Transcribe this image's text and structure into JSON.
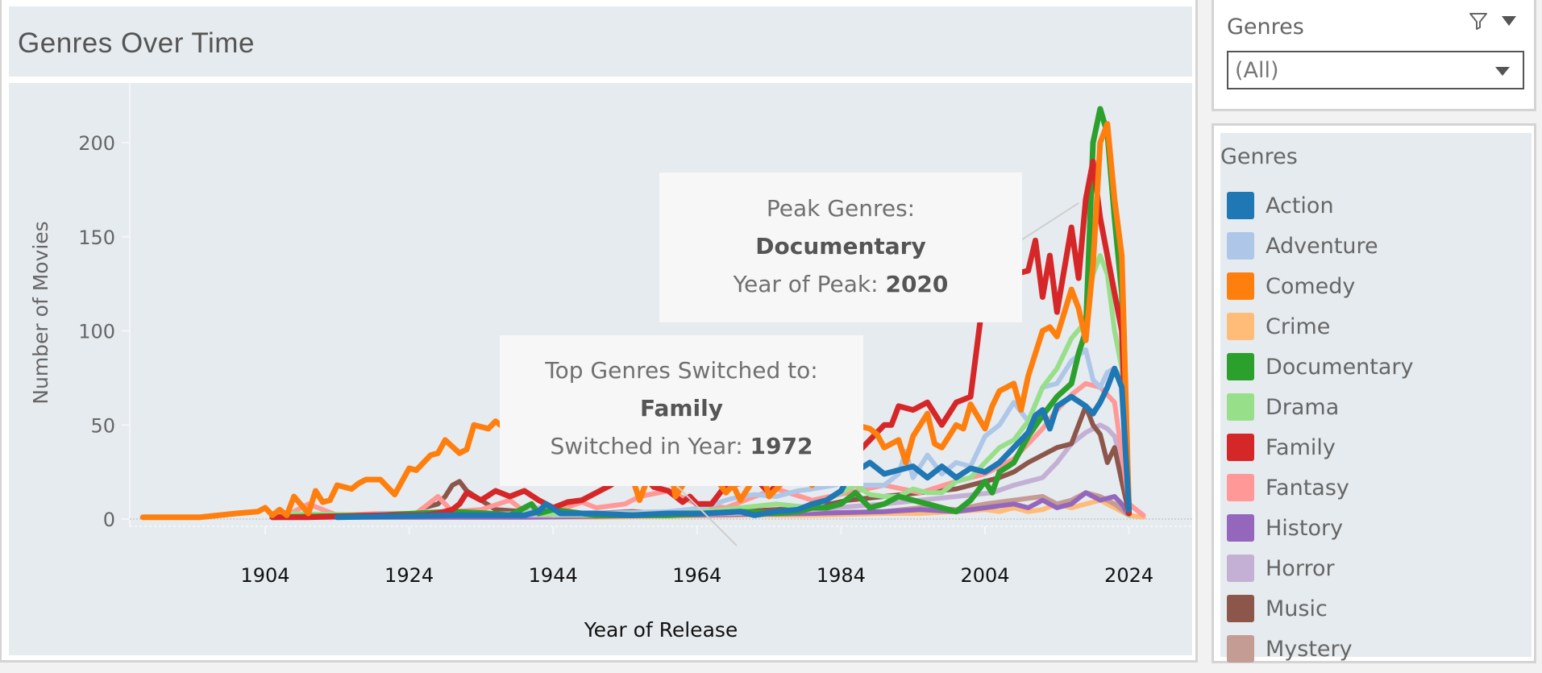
{
  "title": "Genres Over Time",
  "filter": {
    "title": "Genres",
    "selected": "(All)",
    "icons": [
      "filter-icon",
      "menu-caret-icon",
      "dropdown-caret-icon"
    ]
  },
  "legend": {
    "title": "Genres",
    "items": [
      {
        "label": "Action",
        "color": "#1f77b4"
      },
      {
        "label": "Adventure",
        "color": "#aec7e8"
      },
      {
        "label": "Comedy",
        "color": "#ff7f0e"
      },
      {
        "label": "Crime",
        "color": "#ffbb78"
      },
      {
        "label": "Documentary",
        "color": "#2ca02c"
      },
      {
        "label": "Drama",
        "color": "#98df8a"
      },
      {
        "label": "Family",
        "color": "#d62728"
      },
      {
        "label": "Fantasy",
        "color": "#ff9896"
      },
      {
        "label": "History",
        "color": "#9467bd"
      },
      {
        "label": "Horror",
        "color": "#c5b0d5"
      },
      {
        "label": "Music",
        "color": "#8c564b"
      },
      {
        "label": "Mystery",
        "color": "#c49c94"
      }
    ]
  },
  "annotations": {
    "peak": {
      "line1": "Peak Genres:",
      "genre": "Documentary",
      "line3_label": "Year of Peak: ",
      "year": "2020"
    },
    "switch": {
      "line1": "Top Genres Switched to:",
      "genre": "Family",
      "line3_label": "Switched in Year: ",
      "year": "1972"
    }
  },
  "chart_data": {
    "type": "line",
    "title": "Genres Over Time",
    "xlabel": "Year of Release",
    "ylabel": "Number of Movies",
    "xlim": [
      1884,
      2036
    ],
    "ylim": [
      -12,
      225
    ],
    "xticks": [
      1904,
      1924,
      1944,
      1964,
      1984,
      2004,
      2024
    ],
    "yticks": [
      0,
      50,
      100,
      150,
      200
    ],
    "grid": false,
    "legend_position": "right",
    "series": [
      {
        "name": "Comedy",
        "color": "#ff7f0e",
        "x": [
          1887,
          1895,
          1900,
          1903,
          1904,
          1905,
          1906,
          1907,
          1908,
          1910,
          1911,
          1912,
          1913,
          1914,
          1916,
          1917,
          1918,
          1920,
          1922,
          1924,
          1925,
          1927,
          1928,
          1929,
          1931,
          1932,
          1933,
          1935,
          1936,
          1937,
          1938,
          1940,
          1941,
          1942,
          1944,
          1945,
          1946,
          1947,
          1948,
          1950,
          1952,
          1953,
          1955,
          1956,
          1958,
          1960,
          1961,
          1962,
          1964,
          1965,
          1966,
          1968,
          1969,
          1970,
          1972,
          1973,
          1974,
          1976,
          1977,
          1978,
          1980,
          1981,
          1982,
          1984,
          1985,
          1986,
          1988,
          1989,
          1990,
          1992,
          1993,
          1994,
          1996,
          1997,
          1998,
          2000,
          2001,
          2002,
          2004,
          2005,
          2006,
          2008,
          2009,
          2010,
          2012,
          2013,
          2014,
          2016,
          2017,
          2018,
          2019,
          2020,
          2021,
          2022,
          2023,
          2024
        ],
        "y": [
          1,
          1,
          3,
          4,
          6,
          2,
          5,
          2,
          12,
          3,
          15,
          9,
          10,
          18,
          16,
          19,
          21,
          21,
          13,
          27,
          26,
          34,
          35,
          42,
          35,
          37,
          50,
          48,
          52,
          49,
          53,
          45,
          50,
          35,
          48,
          55,
          42,
          48,
          38,
          52,
          32,
          30,
          22,
          10,
          30,
          35,
          12,
          18,
          32,
          20,
          25,
          14,
          18,
          10,
          22,
          26,
          12,
          20,
          28,
          24,
          18,
          33,
          36,
          28,
          40,
          50,
          48,
          45,
          38,
          42,
          30,
          44,
          56,
          40,
          38,
          50,
          48,
          61,
          48,
          60,
          68,
          72,
          58,
          76,
          100,
          102,
          97,
          122,
          112,
          95,
          135,
          200,
          210,
          170,
          140,
          5
        ]
      },
      {
        "name": "Family",
        "color": "#d62728",
        "x": [
          1905,
          1910,
          1920,
          1926,
          1928,
          1930,
          1931,
          1932,
          1934,
          1936,
          1938,
          1940,
          1942,
          1944,
          1946,
          1948,
          1950,
          1952,
          1954,
          1956,
          1957,
          1958,
          1960,
          1962,
          1963,
          1964,
          1966,
          1968,
          1970,
          1972,
          1974,
          1976,
          1978,
          1980,
          1982,
          1984,
          1986,
          1988,
          1990,
          1991,
          1992,
          1994,
          1996,
          1998,
          2000,
          2002,
          2004,
          2006,
          2007,
          2008,
          2010,
          2011,
          2012,
          2013,
          2014,
          2016,
          2017,
          2018,
          2019,
          2020,
          2021,
          2022,
          2023,
          2024
        ],
        "y": [
          1,
          1,
          2,
          2,
          3,
          5,
          8,
          14,
          10,
          15,
          12,
          15,
          10,
          6,
          9,
          10,
          14,
          18,
          24,
          22,
          21,
          17,
          15,
          9,
          12,
          8,
          8,
          18,
          19,
          22,
          14,
          22,
          20,
          28,
          20,
          36,
          34,
          42,
          50,
          50,
          60,
          58,
          62,
          50,
          62,
          65,
          125,
          128,
          132,
          130,
          132,
          148,
          118,
          140,
          110,
          155,
          128,
          170,
          190,
          160,
          140,
          120,
          100,
          3
        ]
      },
      {
        "name": "Documentary",
        "color": "#2ca02c",
        "x": [
          1905,
          1920,
          1925,
          1930,
          1935,
          1938,
          1940,
          1941,
          1942,
          1944,
          1946,
          1948,
          1950,
          1955,
          1960,
          1965,
          1970,
          1975,
          1978,
          1980,
          1982,
          1984,
          1986,
          1988,
          1990,
          1992,
          1994,
          1996,
          1998,
          2000,
          2002,
          2004,
          2005,
          2006,
          2008,
          2010,
          2012,
          2014,
          2016,
          2017,
          2018,
          2019,
          2020,
          2021,
          2022,
          2023,
          2024
        ],
        "y": [
          1,
          2,
          3,
          4,
          3,
          2,
          6,
          8,
          3,
          5,
          4,
          3,
          2,
          2,
          2,
          3,
          4,
          3,
          4,
          6,
          6,
          8,
          14,
          6,
          8,
          12,
          10,
          8,
          6,
          4,
          10,
          20,
          14,
          25,
          30,
          44,
          55,
          65,
          72,
          88,
          100,
          200,
          218,
          205,
          160,
          120,
          3
        ]
      },
      {
        "name": "Drama",
        "color": "#98df8a",
        "x": [
          1906,
          1920,
          1930,
          1940,
          1950,
          1960,
          1965,
          1970,
          1975,
          1980,
          1982,
          1984,
          1986,
          1988,
          1990,
          1992,
          1994,
          1996,
          1998,
          2000,
          2002,
          2004,
          2006,
          2008,
          2010,
          2012,
          2014,
          2016,
          2018,
          2019,
          2020,
          2021,
          2022,
          2023,
          2024
        ],
        "y": [
          3,
          2,
          2,
          3,
          2,
          3,
          4,
          6,
          8,
          6,
          10,
          14,
          18,
          13,
          12,
          12,
          16,
          14,
          14,
          20,
          22,
          30,
          38,
          42,
          52,
          70,
          80,
          96,
          105,
          130,
          140,
          130,
          100,
          80,
          2
        ]
      },
      {
        "name": "Action",
        "color": "#1f77b4",
        "x": [
          1914,
          1930,
          1940,
          1942,
          1943,
          1945,
          1950,
          1955,
          1960,
          1965,
          1970,
          1972,
          1975,
          1978,
          1980,
          1982,
          1984,
          1985,
          1986,
          1988,
          1990,
          1992,
          1994,
          1996,
          1998,
          2000,
          2002,
          2004,
          2006,
          2008,
          2010,
          2011,
          2012,
          2013,
          2014,
          2016,
          2018,
          2019,
          2020,
          2021,
          2022,
          2023,
          2024
        ],
        "y": [
          1,
          2,
          2,
          4,
          8,
          3,
          3,
          2,
          3,
          3,
          4,
          2,
          4,
          5,
          8,
          10,
          15,
          22,
          25,
          30,
          24,
          26,
          28,
          22,
          28,
          22,
          27,
          25,
          30,
          38,
          46,
          55,
          58,
          48,
          60,
          65,
          60,
          56,
          62,
          70,
          80,
          70,
          5
        ]
      },
      {
        "name": "Adventure",
        "color": "#aec7e8",
        "x": [
          1911,
          1918,
          1920,
          1930,
          1940,
          1942,
          1944,
          1950,
          1960,
          1965,
          1968,
          1970,
          1972,
          1975,
          1978,
          1980,
          1983,
          1985,
          1987,
          1990,
          1992,
          1993,
          1994,
          1996,
          1998,
          2000,
          2002,
          2004,
          2006,
          2008,
          2010,
          2012,
          2014,
          2016,
          2018,
          2019,
          2020,
          2021,
          2022,
          2023,
          2024
        ],
        "y": [
          1,
          1,
          3,
          2,
          3,
          6,
          2,
          3,
          4,
          6,
          10,
          12,
          13,
          12,
          15,
          16,
          18,
          20,
          18,
          18,
          24,
          36,
          22,
          34,
          24,
          30,
          28,
          44,
          50,
          62,
          52,
          70,
          72,
          84,
          90,
          74,
          70,
          78,
          80,
          74,
          3
        ]
      },
      {
        "name": "Fantasy",
        "color": "#ff9896",
        "x": [
          1907,
          1910,
          1914,
          1920,
          1925,
          1928,
          1930,
          1934,
          1938,
          1940,
          1945,
          1948,
          1950,
          1954,
          1956,
          1960,
          1964,
          1968,
          1972,
          1975,
          1980,
          1985,
          1990,
          1995,
          2000,
          2004,
          2008,
          2012,
          2014,
          2016,
          2018,
          2020,
          2022,
          2024,
          2026
        ],
        "y": [
          2,
          8,
          2,
          3,
          3,
          12,
          4,
          5,
          10,
          4,
          5,
          9,
          6,
          8,
          12,
          15,
          8,
          6,
          12,
          16,
          10,
          14,
          18,
          14,
          20,
          24,
          32,
          48,
          58,
          66,
          72,
          70,
          62,
          8,
          2
        ]
      },
      {
        "name": "Music",
        "color": "#8c564b",
        "x": [
          1908,
          1920,
          1925,
          1926,
          1928,
          1929,
          1930,
          1931,
          1932,
          1934,
          1936,
          1940,
          1945,
          1950,
          1955,
          1960,
          1965,
          1970,
          1975,
          1980,
          1985,
          1990,
          1995,
          2000,
          2004,
          2006,
          2008,
          2010,
          2012,
          2014,
          2016,
          2018,
          2019,
          2020,
          2021,
          2022,
          2023,
          2024
        ],
        "y": [
          1,
          2,
          3,
          6,
          8,
          12,
          18,
          20,
          15,
          10,
          5,
          4,
          3,
          3,
          4,
          3,
          6,
          4,
          5,
          6,
          10,
          12,
          14,
          16,
          20,
          22,
          25,
          30,
          34,
          38,
          40,
          60,
          50,
          45,
          30,
          38,
          20,
          3
        ]
      },
      {
        "name": "Horror",
        "color": "#c5b0d5",
        "x": [
          1910,
          1930,
          1950,
          1970,
          1980,
          1990,
          1995,
          2000,
          2005,
          2008,
          2010,
          2012,
          2014,
          2016,
          2018,
          2020,
          2021,
          2022,
          2023,
          2024
        ],
        "y": [
          1,
          2,
          2,
          3,
          5,
          8,
          10,
          12,
          14,
          18,
          20,
          22,
          30,
          40,
          46,
          50,
          48,
          44,
          30,
          2
        ]
      },
      {
        "name": "History",
        "color": "#9467bd",
        "x": [
          1910,
          1940,
          1960,
          1980,
          1990,
          1995,
          2000,
          2004,
          2008,
          2010,
          2012,
          2014,
          2016,
          2018,
          2020,
          2022,
          2023,
          2024
        ],
        "y": [
          1,
          1,
          2,
          3,
          4,
          5,
          4,
          6,
          8,
          6,
          10,
          6,
          8,
          14,
          10,
          12,
          8,
          2
        ]
      },
      {
        "name": "Mystery",
        "color": "#c49c94",
        "x": [
          1910,
          1940,
          1960,
          1980,
          1990,
          1995,
          2000,
          2004,
          2008,
          2012,
          2014,
          2016,
          2018,
          2020,
          2022,
          2024
        ],
        "y": [
          1,
          2,
          2,
          3,
          4,
          6,
          5,
          8,
          10,
          12,
          8,
          10,
          14,
          12,
          8,
          2
        ]
      },
      {
        "name": "Crime",
        "color": "#ffbb78",
        "x": [
          1905,
          1930,
          1950,
          1970,
          1980,
          1990,
          1995,
          2000,
          2004,
          2006,
          2008,
          2010,
          2012,
          2014,
          2016,
          2018,
          2020,
          2022,
          2024,
          2026
        ],
        "y": [
          1,
          1,
          1,
          2,
          2,
          3,
          3,
          4,
          5,
          4,
          6,
          4,
          5,
          8,
          6,
          8,
          10,
          6,
          2,
          1
        ]
      }
    ]
  }
}
